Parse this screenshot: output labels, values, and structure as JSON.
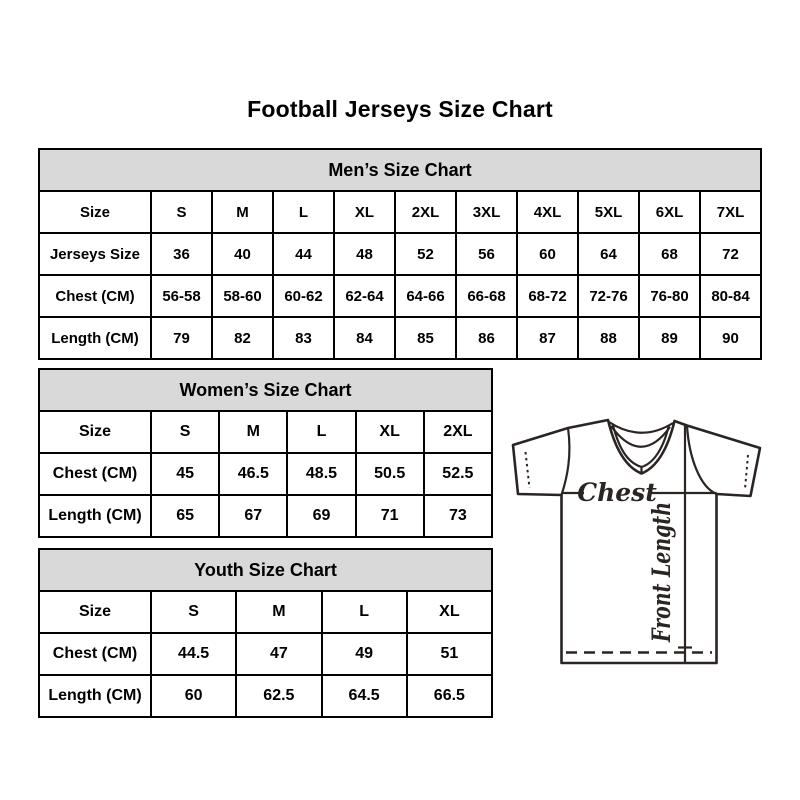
{
  "page": {
    "title": "Football Jerseys Size Chart",
    "background_color": "#ffffff",
    "border_color": "#000000",
    "header_bg_color": "#d9d9d9",
    "text_color": "#000000"
  },
  "tables": {
    "mens": {
      "title": "Men’s Size Chart",
      "rows": [
        [
          "Size",
          "S",
          "M",
          "L",
          "XL",
          "2XL",
          "3XL",
          "4XL",
          "5XL",
          "6XL",
          "7XL"
        ],
        [
          "Jerseys Size",
          "36",
          "40",
          "44",
          "48",
          "52",
          "56",
          "60",
          "64",
          "68",
          "72"
        ],
        [
          "Chest (CM)",
          "56-58",
          "58-60",
          "60-62",
          "62-64",
          "64-66",
          "66-68",
          "68-72",
          "72-76",
          "76-80",
          "80-84"
        ],
        [
          "Length (CM)",
          "79",
          "82",
          "83",
          "84",
          "85",
          "86",
          "87",
          "88",
          "89",
          "90"
        ]
      ]
    },
    "womens": {
      "title": "Women’s Size Chart",
      "rows": [
        [
          "Size",
          "S",
          "M",
          "L",
          "XL",
          "2XL"
        ],
        [
          "Chest (CM)",
          "45",
          "46.5",
          "48.5",
          "50.5",
          "52.5"
        ],
        [
          "Length (CM)",
          "65",
          "67",
          "69",
          "71",
          "73"
        ]
      ]
    },
    "youth": {
      "title": "Youth Size Chart",
      "rows": [
        [
          "Size",
          "S",
          "M",
          "L",
          "XL"
        ],
        [
          "Chest (CM)",
          "44.5",
          "47",
          "49",
          "51"
        ],
        [
          "Length (CM)",
          "60",
          "62.5",
          "64.5",
          "66.5"
        ]
      ]
    }
  },
  "jersey": {
    "chest_label": "Chest",
    "front_length_label": "Front Length",
    "line_color": "#2a2422"
  }
}
